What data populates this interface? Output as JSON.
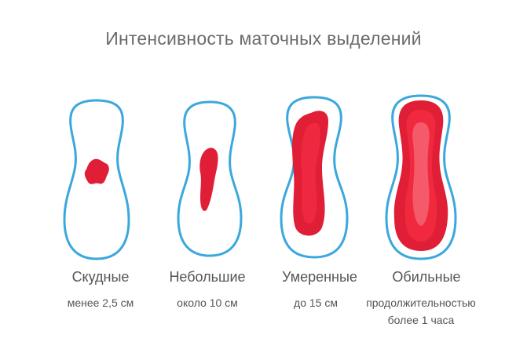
{
  "title": "Интенсивность маточных выделений",
  "colors": {
    "outline": "#3aa8dc",
    "blood_dark": "#e01e36",
    "blood_mid": "#f0293f",
    "blood_light": "#f56b7a"
  },
  "pads": [
    {
      "label": "Скудные",
      "description": "менее 2,5 см"
    },
    {
      "label": "Небольшие",
      "description": "около 10 см"
    },
    {
      "label": "Умеренные",
      "description": "до 15 см"
    },
    {
      "label": "Обильные",
      "description_line1": "продолжительностью",
      "description_line2": "более 1 часа"
    }
  ]
}
